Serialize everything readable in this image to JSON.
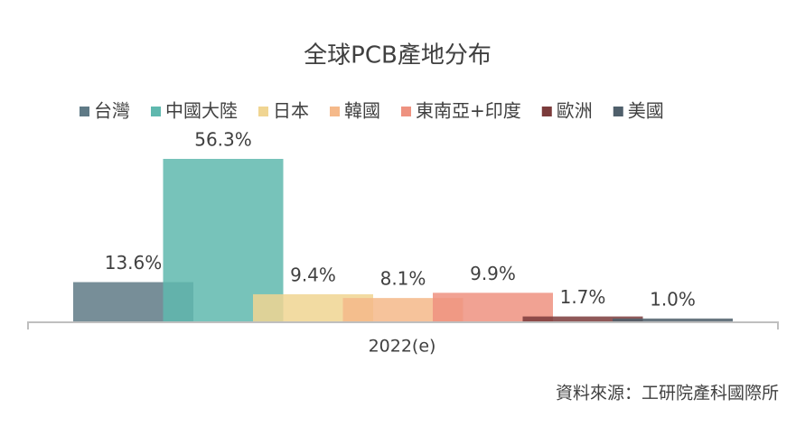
{
  "chart_data": {
    "type": "bar",
    "title": "全球PCB產地分布",
    "categories": [
      "2022(e)"
    ],
    "series": [
      {
        "name": "台灣",
        "color": "#5f7a86",
        "values": [
          13.6
        ],
        "value_labels": [
          "13.6%"
        ]
      },
      {
        "name": "中國大陸",
        "color": "#5fb8ae",
        "values": [
          56.3
        ],
        "value_labels": [
          "56.3%"
        ]
      },
      {
        "name": "日本",
        "color": "#f0d592",
        "values": [
          9.4
        ],
        "value_labels": [
          "9.4%"
        ]
      },
      {
        "name": "韓國",
        "color": "#f5b98a",
        "values": [
          8.1
        ],
        "value_labels": [
          "8.1%"
        ]
      },
      {
        "name": "東南亞+印度",
        "color": "#ee9280",
        "values": [
          9.9
        ],
        "value_labels": [
          "9.9%"
        ]
      },
      {
        "name": "歐洲",
        "color": "#7b3b3b",
        "values": [
          1.7
        ],
        "value_labels": [
          "1.7%"
        ]
      },
      {
        "name": "美國",
        "color": "#4f5f6b",
        "values": [
          1.0
        ],
        "value_labels": [
          "1.0%"
        ]
      }
    ],
    "legend": "top",
    "source": "資料來源：工研院產科國際所"
  }
}
